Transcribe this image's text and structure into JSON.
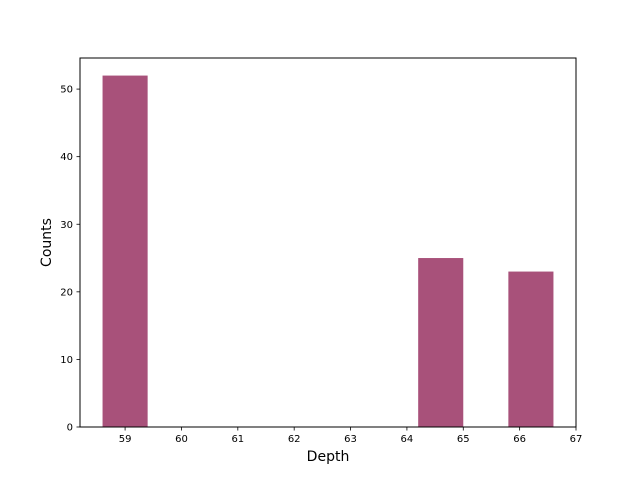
{
  "chart_data": {
    "type": "bar",
    "title": "",
    "xlabel": "Depth",
    "ylabel": "Counts",
    "bars": [
      {
        "x_start": 58.6,
        "x_end": 59.4,
        "value": 52
      },
      {
        "x_start": 64.2,
        "x_end": 65.0,
        "value": 25
      },
      {
        "x_start": 65.8,
        "x_end": 66.6,
        "value": 23
      }
    ],
    "xlim": [
      58.2,
      67
    ],
    "ylim": [
      0,
      54.6
    ],
    "xticks": [
      59,
      60,
      61,
      62,
      63,
      64,
      65,
      66,
      67
    ],
    "yticks": [
      0,
      10,
      20,
      30,
      40,
      50
    ],
    "bar_color": "#a8517a",
    "grid": false,
    "legend": "none"
  }
}
